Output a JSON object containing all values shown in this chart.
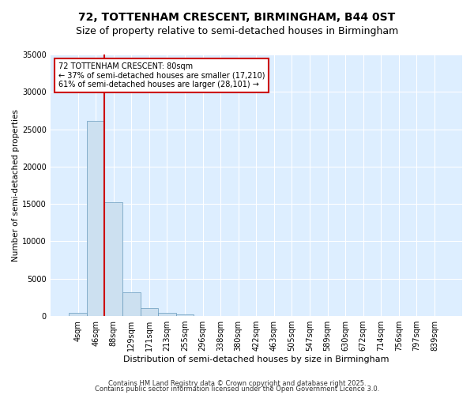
{
  "title": "72, TOTTENHAM CRESCENT, BIRMINGHAM, B44 0ST",
  "subtitle": "Size of property relative to semi-detached houses in Birmingham",
  "xlabel": "Distribution of semi-detached houses by size in Birmingham",
  "ylabel": "Number of semi-detached properties",
  "categories": [
    "4sqm",
    "46sqm",
    "88sqm",
    "129sqm",
    "171sqm",
    "213sqm",
    "255sqm",
    "296sqm",
    "338sqm",
    "380sqm",
    "422sqm",
    "463sqm",
    "505sqm",
    "547sqm",
    "589sqm",
    "630sqm",
    "672sqm",
    "714sqm",
    "756sqm",
    "797sqm",
    "839sqm"
  ],
  "values": [
    390,
    26100,
    15200,
    3200,
    1100,
    450,
    200,
    50,
    0,
    0,
    0,
    0,
    0,
    0,
    0,
    0,
    0,
    0,
    0,
    0,
    0
  ],
  "bar_color": "#cce0f0",
  "bar_edgecolor": "#6699bb",
  "vline_x": 1.5,
  "vline_color": "#cc0000",
  "ylim": [
    0,
    35000
  ],
  "yticks": [
    0,
    5000,
    10000,
    15000,
    20000,
    25000,
    30000,
    35000
  ],
  "annotation_title": "72 TOTTENHAM CRESCENT: 80sqm",
  "annotation_line1": "← 37% of semi-detached houses are smaller (17,210)",
  "annotation_line2": "61% of semi-detached houses are larger (28,101) →",
  "annotation_box_color": "#ffffff",
  "annotation_border_color": "#cc0000",
  "footer_line1": "Contains HM Land Registry data © Crown copyright and database right 2025.",
  "footer_line2": "Contains public sector information licensed under the Open Government Licence 3.0.",
  "background_color": "#ffffff",
  "plot_bg_color": "#ddeeff",
  "grid_color": "#ffffff",
  "title_fontsize": 10,
  "subtitle_fontsize": 9,
  "tick_fontsize": 7,
  "ylabel_fontsize": 7.5,
  "xlabel_fontsize": 8
}
